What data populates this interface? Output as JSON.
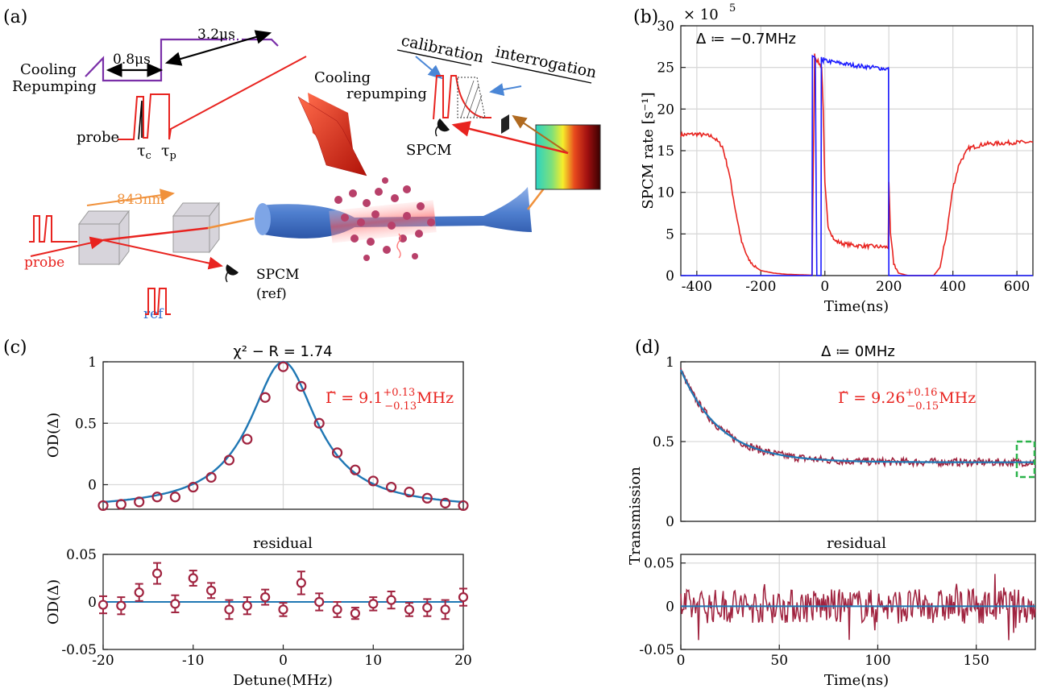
{
  "panels": {
    "a": {
      "label": "(a)",
      "cooling_repumping_left": [
        "Cooling",
        "Repumping"
      ],
      "t1": "0.8μs",
      "t2": "3.2μs",
      "probe_seq": "probe",
      "tau_c": "τ",
      "tau_c_sub": "c",
      "tau_p": "τ",
      "tau_p_sub": "p",
      "cooling_repumping_beam": [
        "Cooling",
        "repumping"
      ],
      "calibration": "calibration",
      "interrogation": "interrogation",
      "spcm_top": "SPCM",
      "wavelength": "843nm",
      "probe_in": "probe",
      "ref": "ref",
      "spcm_ref": [
        "SPCM",
        "(ref)"
      ],
      "colors": {
        "probe": "#e8231f",
        "seq": "#7a2fa8",
        "dipole": "#f0913b",
        "ref_label": "#2f6fd1"
      }
    },
    "b": {
      "label": "(b)"
    },
    "c": {
      "label": "(c)"
    },
    "d": {
      "label": "(d)"
    }
  },
  "chart_data": [
    {
      "id": "b",
      "type": "line",
      "xlabel": "Time(ns)",
      "ylabel": "SPCM  rate [s⁻¹]",
      "exponent": "× 10",
      "exponent_power": "5",
      "annotation": "Δ ≔ −0.7MHz",
      "xlim": [
        -450,
        650
      ],
      "ylim": [
        0,
        30
      ],
      "xticks": [
        -400,
        -200,
        0,
        200,
        400,
        600
      ],
      "yticks": [
        0,
        5,
        10,
        15,
        20,
        25,
        30
      ],
      "grid": true,
      "series": [
        {
          "color": "#e8231f",
          "x": [
            -450,
            -400,
            -350,
            -320,
            -300,
            -280,
            -260,
            -240,
            -220,
            -200,
            -160,
            -120,
            -80,
            -40,
            -32,
            -30,
            -10,
            -5,
            -2,
            0,
            10,
            30,
            60,
            100,
            150,
            198,
            200,
            205,
            215,
            230,
            260,
            300,
            340,
            360,
            380,
            400,
            420,
            450,
            500,
            550,
            600,
            650
          ],
          "y": [
            16.9,
            17.0,
            16.7,
            15.5,
            12.5,
            8.0,
            4.0,
            2.0,
            1.1,
            0.6,
            0.3,
            0.15,
            0.1,
            0.05,
            26.5,
            26.2,
            25.0,
            20.0,
            14.0,
            11.0,
            6.0,
            4.2,
            3.8,
            3.6,
            3.5,
            3.4,
            11.0,
            5.0,
            1.5,
            0.3,
            0.0,
            0.0,
            0.0,
            1.0,
            5.0,
            10.5,
            13.5,
            15.3,
            15.8,
            15.9,
            16.0,
            16.0
          ]
        },
        {
          "color": "#1a1aff",
          "x": [
            -450,
            -40,
            -39,
            -30,
            -25,
            -20,
            -12,
            -11,
            -5,
            -4,
            0,
            50,
            100,
            150,
            198,
            199,
            200,
            650
          ],
          "y": [
            0,
            0,
            26.2,
            26.0,
            0,
            0,
            0,
            26.0,
            25.8,
            26.0,
            25.8,
            25.5,
            25.2,
            25.0,
            24.8,
            24.8,
            0,
            0
          ]
        }
      ]
    },
    {
      "id": "c",
      "type": "scatter",
      "title": "χ² − R = 1.74",
      "annotation": "Γ̃ = 9.1",
      "annotation_sup": "+0.13",
      "annotation_sub": "−0.13",
      "annotation_unit": "MHz",
      "ylabel": "OD(Δ)",
      "xlim": [
        -20,
        20
      ],
      "ylim": [
        -0.2,
        1
      ],
      "xticks": [
        -20,
        -10,
        0,
        10,
        20
      ],
      "ytick_values": [
        0,
        0.5,
        1
      ],
      "ytick_labels": [
        "0",
        "0.5",
        "1"
      ],
      "grid": true,
      "points_x": [
        -20,
        -18,
        -16,
        -14,
        -12,
        -10,
        -8,
        -6,
        -4,
        -2,
        0,
        2,
        4,
        6,
        8,
        10,
        12,
        14,
        16,
        18,
        20
      ],
      "points_y": [
        -0.17,
        -0.16,
        -0.14,
        -0.1,
        -0.1,
        -0.02,
        0.06,
        0.2,
        0.37,
        0.71,
        0.96,
        0.8,
        0.5,
        0.26,
        0.12,
        0.03,
        -0.02,
        -0.06,
        -0.11,
        -0.15,
        -0.17
      ],
      "fit": {
        "color": "#1f77b4",
        "center": 0,
        "halfwidth": 4.55,
        "amp": 1.2,
        "offset": -0.2
      },
      "marker_color": "#a0233f"
    },
    {
      "id": "c_residual",
      "type": "scatter",
      "title": "residual",
      "xlabel": "Detune(MHz)",
      "ylabel": "OD(Δ)",
      "xlim": [
        -20,
        20
      ],
      "ylim": [
        -0.05,
        0.05
      ],
      "xticks": [
        -20,
        -10,
        0,
        10,
        20
      ],
      "ytick_values": [
        -0.05,
        0,
        0.05
      ],
      "ytick_labels": [
        "-0.05",
        "0",
        "0.05"
      ],
      "points_x": [
        -20,
        -18,
        -16,
        -14,
        -12,
        -10,
        -8,
        -6,
        -4,
        -2,
        0,
        2,
        4,
        6,
        8,
        10,
        12,
        14,
        16,
        18,
        20
      ],
      "points_y": [
        -0.003,
        -0.004,
        0.01,
        0.03,
        -0.002,
        0.025,
        0.012,
        -0.008,
        -0.004,
        0.005,
        -0.008,
        0.02,
        0.0,
        -0.008,
        -0.012,
        -0.002,
        0.002,
        -0.008,
        -0.006,
        -0.008,
        0.005
      ],
      "errors": [
        0.009,
        0.009,
        0.009,
        0.011,
        0.009,
        0.008,
        0.008,
        0.01,
        0.009,
        0.008,
        0.007,
        0.012,
        0.009,
        0.008,
        0.006,
        0.007,
        0.009,
        0.007,
        0.009,
        0.01,
        0.009
      ],
      "marker_color": "#a0233f"
    },
    {
      "id": "d",
      "type": "line",
      "title": "Δ ≔ 0MHz",
      "annotation": "Γ̃ = 9.26",
      "annotation_sup": "+0.16",
      "annotation_sub": "−0.15",
      "annotation_unit": "MHz",
      "ylabel": "Transmission",
      "xlim": [
        0,
        180
      ],
      "ylim": [
        0,
        1
      ],
      "xticks": [
        0,
        50,
        100,
        150
      ],
      "yticks": [
        0,
        0.5,
        1
      ],
      "grid": true,
      "fit": {
        "color": "#1f77b4",
        "a": 0.58,
        "tau": 20,
        "c": 0.37
      },
      "data_color": "#a0233f",
      "noise_amp": 0.025
    },
    {
      "id": "d_residual",
      "type": "line",
      "title": "residual",
      "xlabel": "Time(ns)",
      "xlim": [
        0,
        180
      ],
      "ylim": [
        -0.05,
        0.06
      ],
      "xticks": [
        0,
        50,
        100,
        150
      ],
      "ytick_values": [
        -0.05,
        0,
        0.05
      ],
      "ytick_labels": [
        "-0.05",
        "0",
        "0.05"
      ],
      "data_color": "#a0233f",
      "noise_amp": 0.02
    }
  ]
}
